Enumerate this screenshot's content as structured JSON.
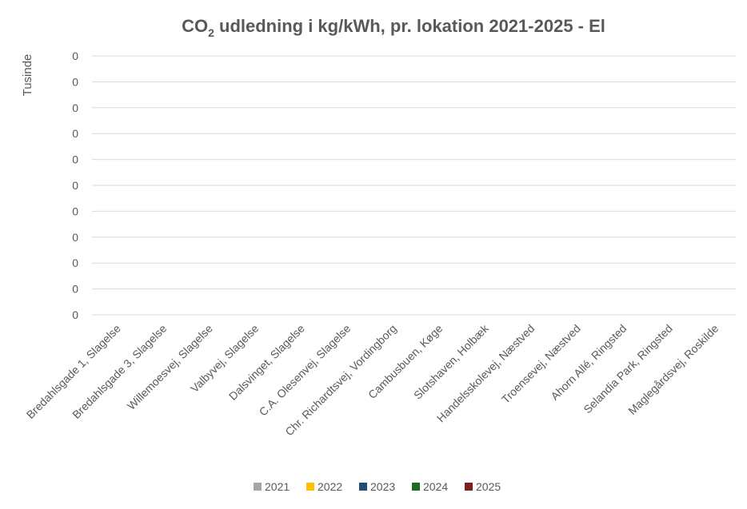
{
  "chart_data": {
    "type": "bar",
    "title": {
      "prefix": "CO",
      "subscript": "2",
      "suffix": " udledning i kg/kWh, pr. lokation 2021-2025 - El"
    },
    "ylabel": "Tusinde",
    "xlabel": "",
    "grid": true,
    "legend_position": "bottom",
    "yticks": [
      "0",
      "0",
      "0",
      "0",
      "0",
      "0",
      "0",
      "0",
      "0",
      "0",
      "0"
    ],
    "categories": [
      "Bredahlsgade 1, Slagelse",
      "Bredahlsgade 3, Slagelse",
      "Willemoesvej, Slagelse",
      "Valbyvej, Slagelse",
      "Dalsvinget, Slagelse",
      "C.A. Olesenvej, Slagelse",
      "Chr. Richardtsvej, Vordingborg",
      "Cambusbuen, Køge",
      "Slotshaven, Holbæk",
      "Handelsskolevej, Næstved",
      "Troensevej, Næstved",
      "Ahorn Allé, Ringsted",
      "Selandia Park, Ringsted",
      "Maglegårdsvej, Roskilde"
    ],
    "series": [
      {
        "name": "2021",
        "color": "#a5a5a5",
        "values": [
          0,
          0,
          0,
          0,
          0,
          0,
          0,
          0,
          0,
          0,
          0,
          0,
          0,
          0
        ]
      },
      {
        "name": "2022",
        "color": "#ffc000",
        "values": [
          0,
          0,
          0,
          0,
          0,
          0,
          0,
          0,
          0,
          0,
          0,
          0,
          0,
          0
        ]
      },
      {
        "name": "2023",
        "color": "#1f4e79",
        "values": [
          0,
          0,
          0,
          0,
          0,
          0,
          0,
          0,
          0,
          0,
          0,
          0,
          0,
          0
        ]
      },
      {
        "name": "2024",
        "color": "#1e6b1e",
        "values": [
          0,
          0,
          0,
          0,
          0,
          0,
          0,
          0,
          0,
          0,
          0,
          0,
          0,
          0
        ]
      },
      {
        "name": "2025",
        "color": "#7b2020",
        "values": [
          0,
          0,
          0,
          0,
          0,
          0,
          0,
          0,
          0,
          0,
          0,
          0,
          0,
          0
        ]
      }
    ]
  }
}
